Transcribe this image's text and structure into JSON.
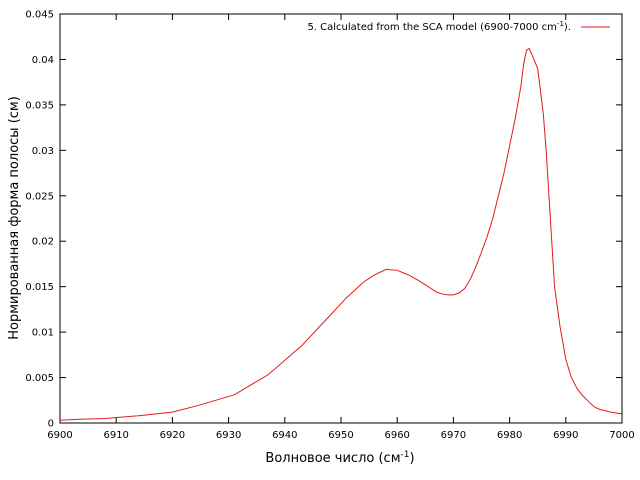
{
  "chart_data": {
    "type": "line",
    "xlabel": "Волновое число (см",
    "xlabel_sup": "-1",
    "xlabel_end": ")",
    "ylabel": "Нормированная форма полосы (см)",
    "xlim": [
      6900,
      7000
    ],
    "ylim": [
      0,
      0.045
    ],
    "x_ticks": [
      "6900",
      "6910",
      "6920",
      "6930",
      "6940",
      "6950",
      "6960",
      "6970",
      "6980",
      "6990",
      "7000"
    ],
    "y_ticks": [
      "0",
      "0.005",
      "0.01",
      "0.015",
      "0.02",
      "0.025",
      "0.03",
      "0.035",
      "0.04",
      "0.045"
    ],
    "grid": false,
    "legend_position": "top-right",
    "series": [
      {
        "name": "5. Calculated from the SCA model (6900-7000 cm",
        "name_sup": "-1",
        "name_end": ").",
        "color": "#e41a1c",
        "x": [
          6900,
          6903,
          6908,
          6914,
          6920,
          6925,
          6931,
          6937,
          6943,
          6948,
          6951,
          6954,
          6956,
          6958,
          6960,
          6962,
          6964,
          6966,
          6967,
          6968,
          6969,
          6970,
          6971,
          6972,
          6973,
          6974,
          6975,
          6976,
          6977,
          6978,
          6979,
          6980,
          6981,
          6982,
          6982.5,
          6983,
          6983.5,
          6984,
          6985,
          6986,
          6986.5,
          6987,
          6988,
          6989,
          6990,
          6991,
          6992,
          6993,
          6994,
          6995,
          6996,
          6998,
          7000
        ],
        "y": [
          0.0003,
          0.0004,
          0.0005,
          0.0008,
          0.0012,
          0.002,
          0.0031,
          0.0053,
          0.0085,
          0.0118,
          0.0138,
          0.0155,
          0.0163,
          0.0169,
          0.0168,
          0.0163,
          0.0156,
          0.0148,
          0.0144,
          0.0142,
          0.0141,
          0.0141,
          0.0143,
          0.0148,
          0.0158,
          0.0172,
          0.0188,
          0.0205,
          0.0225,
          0.025,
          0.0275,
          0.0305,
          0.0335,
          0.037,
          0.0395,
          0.041,
          0.0412,
          0.0405,
          0.039,
          0.034,
          0.03,
          0.025,
          0.015,
          0.0105,
          0.007,
          0.005,
          0.0038,
          0.003,
          0.0024,
          0.0018,
          0.0015,
          0.0012,
          0.001
        ]
      }
    ]
  }
}
